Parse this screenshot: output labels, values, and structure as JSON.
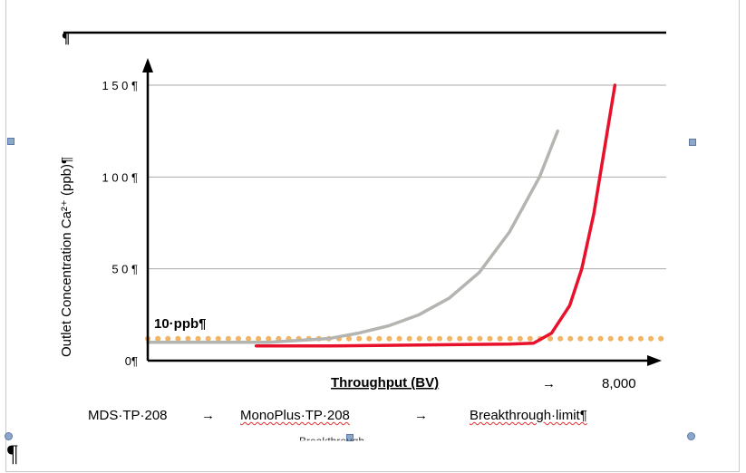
{
  "chart_data": {
    "type": "line",
    "ylabel": "Outlet Concentration  Ca²⁺ (ppb)¶",
    "xlabel": "Throughput (BV)",
    "x_tick_labels": [
      "8,000"
    ],
    "y_ticks": [
      0,
      50,
      100,
      150
    ],
    "y_tick_labels": [
      "0¶",
      "5 0 ¶",
      "1 0 0 ¶",
      "1 5 0 ¶"
    ],
    "xlim": [
      0,
      8000
    ],
    "ylim": [
      0,
      150
    ],
    "grid": true,
    "threshold": {
      "label": "10·ppb¶",
      "value": 10,
      "color": "#f2b566"
    },
    "series": [
      {
        "name": "MDS·TP·208",
        "color": "#b4b4b0",
        "x": [
          0,
          1000,
          2000,
          3000,
          3500,
          4000,
          4500,
          5000,
          5500,
          6000,
          6500,
          6800
        ],
        "y": [
          10,
          10,
          10,
          12,
          15,
          19,
          25,
          34,
          48,
          70,
          100,
          125
        ]
      },
      {
        "name": "MonoPlus·TP·208",
        "color": "#e8102a",
        "x": [
          1800,
          3000,
          4500,
          6000,
          6400,
          6700,
          7000,
          7200,
          7400,
          7600,
          7750
        ],
        "y": [
          8,
          8,
          8.5,
          9,
          9.5,
          15,
          30,
          50,
          80,
          120,
          150
        ]
      }
    ]
  },
  "legend": {
    "item1": "MDS·TP·208",
    "item2": "MonoPlus·TP·208",
    "item3": "Breakthrough·limit¶",
    "arrow": "→",
    "cutoff_text": "Breakthrough"
  },
  "doc_marks": {
    "pilcrow_top": "¶",
    "pilcrow_bottom": "¶"
  }
}
